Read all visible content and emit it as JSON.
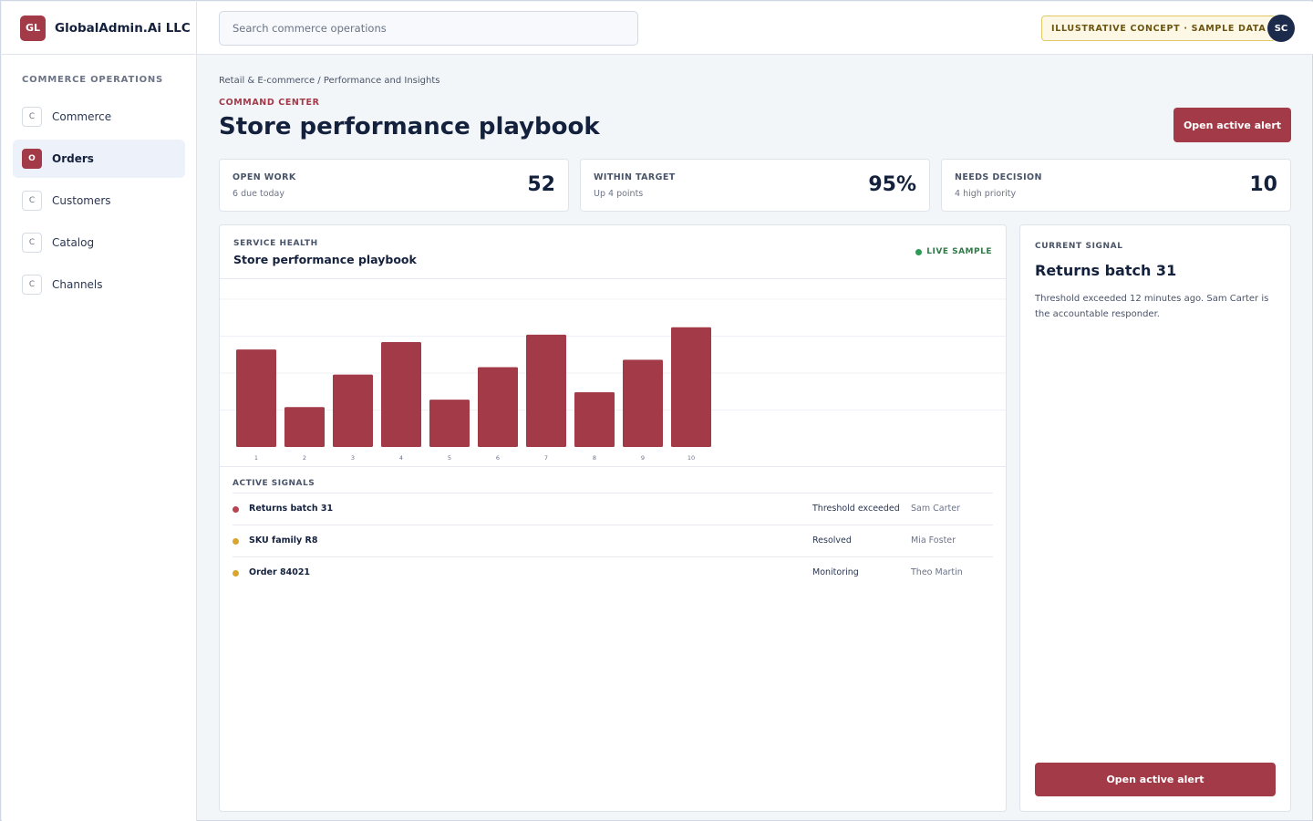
{
  "brand": {
    "logo": "GL",
    "name": "GlobalAdmin.Ai LLC"
  },
  "sidebar": {
    "heading": "COMMERCE OPERATIONS",
    "items": [
      {
        "badge": "C",
        "label": "Commerce",
        "active": false
      },
      {
        "badge": "O",
        "label": "Orders",
        "active": true
      },
      {
        "badge": "C",
        "label": "Customers",
        "active": false
      },
      {
        "badge": "C",
        "label": "Catalog",
        "active": false
      },
      {
        "badge": "C",
        "label": "Channels",
        "active": false
      }
    ]
  },
  "topbar": {
    "search_placeholder": "Search commerce operations",
    "badge": "ILLUSTRATIVE CONCEPT · SAMPLE DATA",
    "avatar": "SC"
  },
  "header": {
    "breadcrumb": "Retail & E-commerce / Performance and Insights",
    "eyebrow": "COMMAND CENTER",
    "title": "Store performance playbook",
    "action_label": "Open active alert"
  },
  "kpis": [
    {
      "label": "OPEN WORK",
      "sub": "6 due today",
      "value": "52"
    },
    {
      "label": "WITHIN TARGET",
      "sub": "Up 4 points",
      "value": "95%"
    },
    {
      "label": "NEEDS DECISION",
      "sub": "4 high priority",
      "value": "10"
    }
  ],
  "health": {
    "eyebrow": "SERVICE HEALTH",
    "title": "Store performance playbook",
    "live_label": "LIVE SAMPLE"
  },
  "chart_data": {
    "type": "bar",
    "categories": [
      "1",
      "2",
      "3",
      "4",
      "5",
      "6",
      "7",
      "8",
      "9",
      "10"
    ],
    "values": [
      66,
      27,
      49,
      71,
      32,
      54,
      76,
      37,
      59,
      81
    ],
    "ylim": [
      0,
      100
    ],
    "grid": true,
    "color": "#a33a48"
  },
  "signals": {
    "heading": "ACTIVE SIGNALS",
    "rows": [
      {
        "name": "Returns batch 31",
        "status": "Threshold exceeded",
        "owner": "Sam Carter",
        "color": "#b84452"
      },
      {
        "name": "SKU family R8",
        "status": "Resolved",
        "owner": "Mia Foster",
        "color": "#d9a52c"
      },
      {
        "name": "Order 84021",
        "status": "Monitoring",
        "owner": "Theo Martin",
        "color": "#d9a52c"
      }
    ]
  },
  "current_signal": {
    "eyebrow": "CURRENT SIGNAL",
    "title": "Returns batch 31",
    "description": "Threshold exceeded 12 minutes ago. Sam Carter is the accountable responder.",
    "action_label": "Open active alert"
  }
}
